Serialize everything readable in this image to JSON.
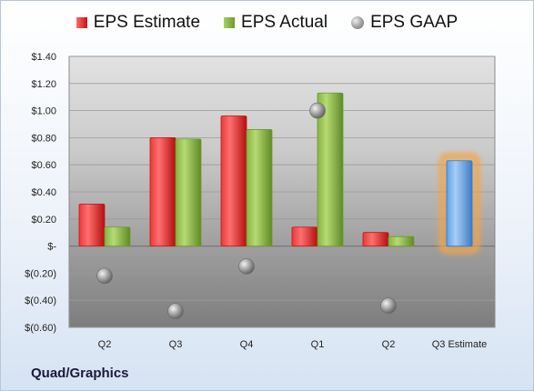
{
  "legend": {
    "estimate": "EPS Estimate",
    "actual": "EPS Actual",
    "gaap": "EPS GAAP"
  },
  "company": "Quad/Graphics",
  "colors": {
    "estimate": "#c81414",
    "actual": "#6e9a2e",
    "gaap": "#8c8c8c",
    "forecast": "#4f8fd6",
    "highlight": "#f5a444"
  },
  "chart_data": {
    "type": "bar",
    "title": "",
    "xlabel": "",
    "ylabel": "",
    "ylim": [
      -0.6,
      1.4
    ],
    "y_ticks": [
      {
        "v": 1.4,
        "label": "$1.40"
      },
      {
        "v": 1.2,
        "label": "$1.20"
      },
      {
        "v": 1.0,
        "label": "$1.00"
      },
      {
        "v": 0.8,
        "label": "$0.80"
      },
      {
        "v": 0.6,
        "label": "$0.60"
      },
      {
        "v": 0.4,
        "label": "$0.40"
      },
      {
        "v": 0.2,
        "label": "$0.20"
      },
      {
        "v": 0.0,
        "label": "$-"
      },
      {
        "v": -0.2,
        "label": "$(0.20)"
      },
      {
        "v": -0.4,
        "label": "$(0.40)"
      },
      {
        "v": -0.6,
        "label": "$(0.60)"
      }
    ],
    "categories": [
      "Q2",
      "Q3",
      "Q4",
      "Q1",
      "Q2",
      "Q3 Estimate"
    ],
    "series": [
      {
        "name": "EPS Estimate",
        "values": [
          0.31,
          0.8,
          0.96,
          0.14,
          0.1,
          null
        ]
      },
      {
        "name": "EPS Actual",
        "values": [
          0.14,
          0.79,
          0.86,
          1.13,
          0.07,
          null
        ]
      },
      {
        "name": "EPS GAAP",
        "values": [
          -0.22,
          -0.48,
          -0.15,
          1.0,
          -0.44,
          null
        ]
      }
    ],
    "forecast": {
      "category": "Q3 Estimate",
      "value": 0.63
    }
  }
}
